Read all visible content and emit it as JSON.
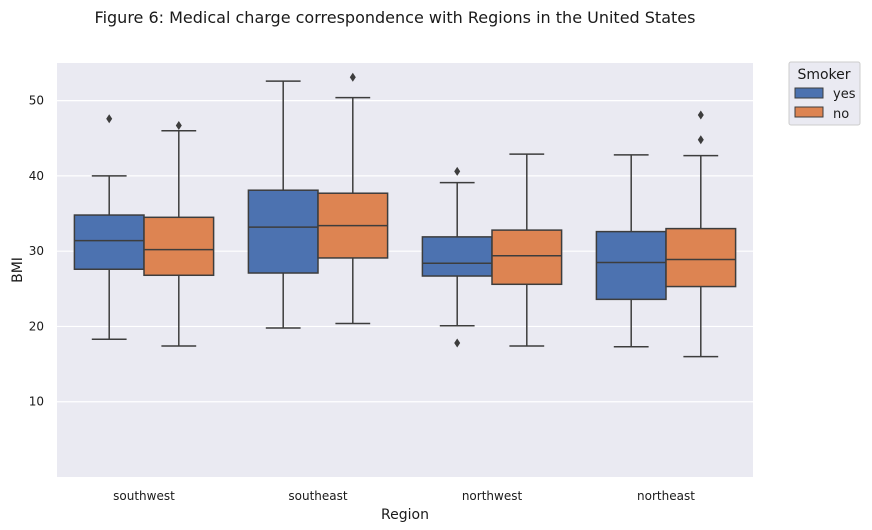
{
  "chart_data": {
    "type": "box",
    "title": "Figure 6: Medical charge correspondence with Regions in the United States",
    "xlabel": "Region",
    "ylabel": "BMI",
    "categories": [
      "southwest",
      "southeast",
      "northwest",
      "northeast"
    ],
    "yticks": [
      10,
      20,
      30,
      40,
      50
    ],
    "ylim": [
      0,
      55
    ],
    "grid": true,
    "legend": {
      "title": "Smoker",
      "position": "outside-top-right",
      "entries": [
        "yes",
        "no"
      ]
    },
    "series": [
      {
        "name": "yes",
        "color": "#4c72b0",
        "boxes": [
          {
            "whisker_low": 18.3,
            "q1": 27.6,
            "median": 31.4,
            "q3": 34.8,
            "whisker_high": 40.0,
            "outliers": [
              47.6
            ]
          },
          {
            "whisker_low": 19.8,
            "q1": 27.1,
            "median": 33.2,
            "q3": 38.1,
            "whisker_high": 52.6,
            "outliers": []
          },
          {
            "whisker_low": 20.1,
            "q1": 26.7,
            "median": 28.4,
            "q3": 31.9,
            "whisker_high": 39.1,
            "outliers": [
              17.8,
              40.6
            ]
          },
          {
            "whisker_low": 17.3,
            "q1": 23.6,
            "median": 28.5,
            "q3": 32.6,
            "whisker_high": 42.8,
            "outliers": []
          }
        ]
      },
      {
        "name": "no",
        "color": "#dd8452",
        "boxes": [
          {
            "whisker_low": 17.4,
            "q1": 26.8,
            "median": 30.2,
            "q3": 34.5,
            "whisker_high": 46.0,
            "outliers": [
              46.7
            ]
          },
          {
            "whisker_low": 20.4,
            "q1": 29.1,
            "median": 33.4,
            "q3": 37.7,
            "whisker_high": 50.4,
            "outliers": [
              53.1
            ]
          },
          {
            "whisker_low": 17.4,
            "q1": 25.6,
            "median": 29.4,
            "q3": 32.8,
            "whisker_high": 42.9,
            "outliers": []
          },
          {
            "whisker_low": 16.0,
            "q1": 25.3,
            "median": 28.9,
            "q3": 33.0,
            "whisker_high": 42.7,
            "outliers": [
              44.8,
              48.1
            ]
          }
        ]
      }
    ]
  }
}
